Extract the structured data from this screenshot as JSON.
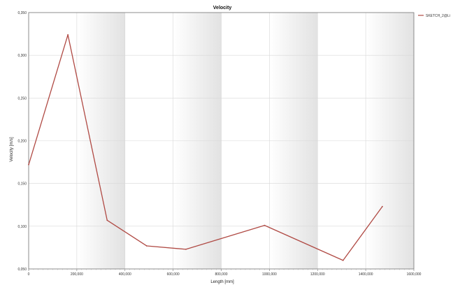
{
  "chart_data": {
    "type": "line",
    "title": "Velocity",
    "xlabel": "Length [mm]",
    "ylabel": "Velocity [m/s]",
    "xlim": [
      0,
      1600
    ],
    "ylim": [
      0.05,
      0.35
    ],
    "grid": true,
    "legend_position": "top-right",
    "x_ticks": [
      "0",
      "200,000",
      "400,000",
      "600,000",
      "800,000",
      "1000,000",
      "1200,000",
      "1400,000",
      "1600,000"
    ],
    "y_ticks": [
      "0,050",
      "0,100",
      "0,150",
      "0,200",
      "0,250",
      "0,300",
      "0,350"
    ],
    "series": [
      {
        "name": "SKETCH_2@Li",
        "color": "#b04a44",
        "x": [
          0,
          163,
          326,
          490,
          653,
          980,
          1306,
          1469
        ],
        "y": [
          0.172,
          0.324,
          0.107,
          0.077,
          0.073,
          0.101,
          0.06,
          0.123
        ]
      }
    ]
  }
}
